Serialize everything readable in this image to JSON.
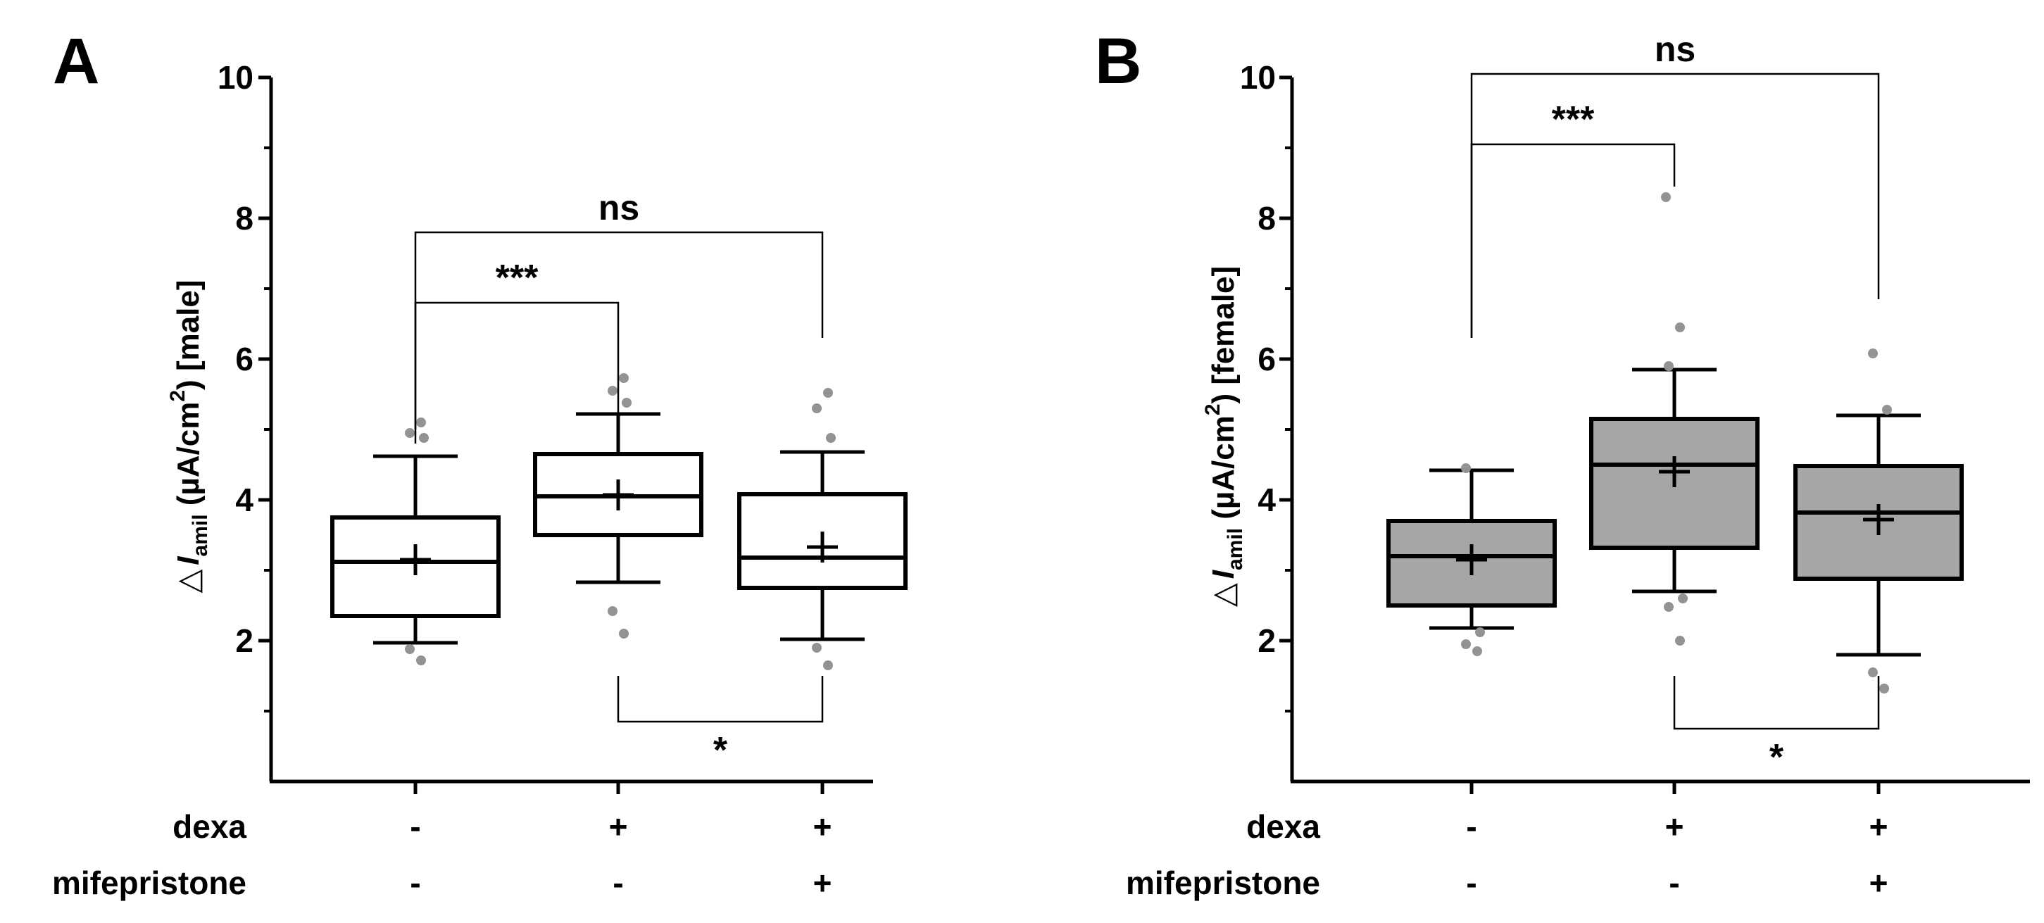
{
  "chart_data": [
    {
      "type": "box",
      "panel_label": "A",
      "ylabel_parts": {
        "delta": "△",
        "I": "I",
        "amil": "amil",
        "units": " (µA/cm",
        "sup": "2",
        "tail": ") [male]"
      },
      "ylim": [
        0,
        10
      ],
      "yticks": [
        2,
        4,
        6,
        8,
        10
      ],
      "box_fill": "#ffffff",
      "conditions": [
        {
          "label": "dexa",
          "marks": [
            "-",
            "+",
            "+"
          ]
        },
        {
          "label": "mifepristone",
          "marks": [
            "-",
            "-",
            "+"
          ]
        }
      ],
      "groups": [
        {
          "whisker_low": 1.97,
          "q1": 2.35,
          "median": 3.12,
          "q3": 3.75,
          "whisker_high": 4.62,
          "mean": 3.15,
          "outliers": [
            1.72,
            1.88,
            4.88,
            4.95,
            5.1
          ]
        },
        {
          "whisker_low": 2.83,
          "q1": 3.5,
          "median": 4.05,
          "q3": 4.65,
          "whisker_high": 5.22,
          "mean": 4.07,
          "outliers": [
            2.1,
            2.42,
            5.38,
            5.55,
            5.73
          ]
        },
        {
          "whisker_low": 2.02,
          "q1": 2.75,
          "median": 3.18,
          "q3": 4.08,
          "whisker_high": 4.68,
          "mean": 3.33,
          "outliers": [
            1.65,
            1.9,
            4.88,
            5.3,
            5.52
          ]
        }
      ],
      "significance": [
        {
          "from": 0,
          "to": 1,
          "y": 4.8,
          "y_top": 6.8,
          "y_bottom": 5.2,
          "label": "***",
          "direction": "up"
        },
        {
          "from": 0,
          "to": 2,
          "y": 5.0,
          "y_top": 7.8,
          "y_bottom": 6.3,
          "label": "ns",
          "direction": "up"
        },
        {
          "from": 1,
          "to": 2,
          "y": 0,
          "y_top": 1.5,
          "y_bottom": 0.85,
          "label": "*",
          "direction": "down"
        }
      ]
    },
    {
      "type": "box",
      "panel_label": "B",
      "ylabel_parts": {
        "delta": "△",
        "I": "I",
        "amil": "amil",
        "units": " (µA/cm",
        "sup": "2",
        "tail": ") [female]"
      },
      "ylim": [
        0,
        10
      ],
      "yticks": [
        2,
        4,
        6,
        8,
        10
      ],
      "box_fill": "#a6a6a6",
      "conditions": [
        {
          "label": "dexa",
          "marks": [
            "-",
            "+",
            "+"
          ]
        },
        {
          "label": "mifepristone",
          "marks": [
            "-",
            "-",
            "+"
          ]
        }
      ],
      "groups": [
        {
          "whisker_low": 2.18,
          "q1": 2.5,
          "median": 3.2,
          "q3": 3.7,
          "whisker_high": 4.42,
          "mean": 3.15,
          "outliers": [
            1.85,
            1.95,
            2.12,
            4.45
          ]
        },
        {
          "whisker_low": 2.7,
          "q1": 3.32,
          "median": 4.5,
          "q3": 5.15,
          "whisker_high": 5.85,
          "mean": 4.4,
          "outliers": [
            2.0,
            2.48,
            2.6,
            5.9,
            6.45,
            8.3
          ]
        },
        {
          "whisker_low": 1.8,
          "q1": 2.88,
          "median": 3.82,
          "q3": 4.48,
          "whisker_high": 5.2,
          "mean": 3.72,
          "outliers": [
            1.32,
            1.55,
            5.28,
            6.08
          ]
        }
      ],
      "significance": [
        {
          "from": 0,
          "to": 1,
          "y": 6.3,
          "y_top": 9.05,
          "y_bottom": 8.45,
          "label": "***",
          "direction": "up"
        },
        {
          "from": 0,
          "to": 2,
          "y": 6.3,
          "y_top": 10.05,
          "y_bottom": 6.85,
          "label": "ns",
          "direction": "up"
        },
        {
          "from": 1,
          "to": 2,
          "y": 0,
          "y_top": 1.5,
          "y_bottom": 0.75,
          "label": "*",
          "direction": "down"
        }
      ]
    }
  ]
}
